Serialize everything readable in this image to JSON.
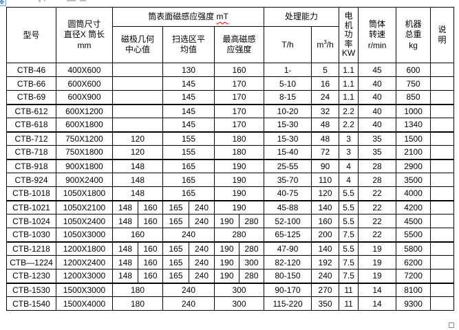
{
  "window": {
    "background": "#ffffff",
    "border_color": "#000000",
    "squiggle_color": "#ff0000"
  },
  "handles": {
    "move_handle_icon": "✥",
    "move_handle_name": "table-move-handle",
    "resize_handle_name": "table-resize-handle"
  },
  "table": {
    "header": {
      "model": "型号",
      "size_lines": [
        "圆筒尺寸",
        "直径X 筒长",
        "mm"
      ],
      "surface_group_text": "筒表面磁感应强度 ",
      "surface_group_unit": "mT",
      "pole_lines": [
        "磁极几何",
        "中心值"
      ],
      "sweep_lines": [
        "扫选区平",
        "均值"
      ],
      "max_lines": [
        "最高磁感",
        "应强度"
      ],
      "capacity_group": "处理能力",
      "th": "T/h",
      "m3h_prefix": "m",
      "m3h_sup": "3",
      "m3h_suffix": "/h",
      "motor_chars": [
        "电",
        "机",
        "功",
        "率",
        "KW"
      ],
      "rpm_lines": [
        "筒体",
        "转速",
        "r/min"
      ],
      "weight_lines": [
        "机器",
        "总重",
        "kg"
      ],
      "note_lines": [
        "说",
        "明"
      ]
    },
    "rows": [
      {
        "model": "CTB-46",
        "size": "400X600",
        "pole": [
          ""
        ],
        "sweep": [
          "130"
        ],
        "max": [
          "160"
        ],
        "th": "1-",
        "m3h": "5",
        "kw": "1.1",
        "rpm": "45",
        "kg": "600",
        "note": "",
        "thick_top": false
      },
      {
        "model": "CTB-66",
        "size": "600X600",
        "pole": [
          ""
        ],
        "sweep": [
          "145"
        ],
        "max": [
          "170"
        ],
        "th": "5-10",
        "m3h": "16",
        "kw": "1.1",
        "rpm": "40",
        "kg": "750",
        "note": "",
        "thick_top": false
      },
      {
        "model": "CTB-69",
        "size": "600X900",
        "pole": [
          ""
        ],
        "sweep": [
          "145"
        ],
        "max": [
          "170"
        ],
        "th": "8-15",
        "m3h": "24",
        "kw": "1.1",
        "rpm": "40",
        "kg": "850",
        "note": "",
        "thick_top": false
      },
      {
        "model": "CTB-612",
        "size": "600X1200",
        "pole": [
          ""
        ],
        "sweep": [
          "145"
        ],
        "max": [
          "170"
        ],
        "th": "10-20",
        "m3h": "32",
        "kw": "2.2",
        "rpm": "40",
        "kg": "1000",
        "note": "",
        "thick_top": true
      },
      {
        "model": "CTB-618",
        "size": "600X1800",
        "pole": [
          ""
        ],
        "sweep": [
          "145"
        ],
        "max": [
          "170"
        ],
        "th": "15-30",
        "m3h": "48",
        "kw": "2.2",
        "rpm": "40",
        "kg": "1340",
        "note": "",
        "thick_top": false
      },
      {
        "model": "CTB-712",
        "size": "750X1200",
        "pole": [
          "120"
        ],
        "sweep": [
          "155"
        ],
        "max": [
          "180"
        ],
        "th": "15-30",
        "m3h": "48",
        "kw": "3",
        "rpm": "35",
        "kg": "1500",
        "note": "",
        "thick_top": true
      },
      {
        "model": "CTB-718",
        "size": "750X1800",
        "pole": [
          "120"
        ],
        "sweep": [
          "155"
        ],
        "max": [
          "180"
        ],
        "th": "15-40",
        "m3h": "72",
        "kw": "3",
        "rpm": "35",
        "kg": "2100",
        "note": "",
        "thick_top": false
      },
      {
        "model": "CTB-918",
        "size": "900X1800",
        "pole": [
          "148"
        ],
        "sweep": [
          "165"
        ],
        "max": [
          "190"
        ],
        "th": "25-55",
        "m3h": "90",
        "kw": "4",
        "rpm": "28",
        "kg": "2900",
        "note": "",
        "thick_top": true
      },
      {
        "model": "CTB-924",
        "size": "900X2400",
        "pole": [
          "148"
        ],
        "sweep": [
          "165"
        ],
        "max": [
          "190"
        ],
        "th": "35-70",
        "m3h": "110",
        "kw": "4",
        "rpm": "28",
        "kg": "3500",
        "note": "",
        "thick_top": false
      },
      {
        "model": "CTB-1018",
        "size": "1050X1800",
        "pole": [
          "148"
        ],
        "sweep": [
          "165"
        ],
        "max": [
          "190"
        ],
        "th": "40-75",
        "m3h": "120",
        "kw": "5.5",
        "rpm": "22",
        "kg": "4000",
        "note": "",
        "thick_top": false
      },
      {
        "model": "CTB-1021",
        "size": "1050X2100",
        "pole": [
          "148",
          "160"
        ],
        "sweep": [
          "165",
          "240"
        ],
        "max": [
          "190"
        ],
        "th": "45-88",
        "m3h": "140",
        "kw": "5.5",
        "rpm": "22",
        "kg": "4200",
        "note": "",
        "thick_top": true
      },
      {
        "model": "CTB-1024",
        "size": "1050X2400",
        "pole": [
          "148",
          "160"
        ],
        "sweep": [
          "165",
          "240"
        ],
        "max": [
          "190",
          "280"
        ],
        "th": "52-100",
        "m3h": "160",
        "kw": "5.5",
        "rpm": "22",
        "kg": "4500",
        "note": "",
        "thick_top": false
      },
      {
        "model": "CTB-1030",
        "size": "1050X3000",
        "pole": [
          "160"
        ],
        "sweep": [
          "240"
        ],
        "max": [
          "280"
        ],
        "th": "65-125",
        "m3h": "200",
        "kw": "7.5",
        "rpm": "22",
        "kg": "5500",
        "note": "",
        "thick_top": false
      },
      {
        "model": "CTB-1218",
        "size": "1200X1800",
        "pole": [
          "148",
          "160"
        ],
        "sweep": [
          "165",
          "240"
        ],
        "max": [
          "190",
          "280"
        ],
        "th": "47-90",
        "m3h": "140",
        "kw": "5.5",
        "rpm": "19",
        "kg": "5800",
        "note": "",
        "thick_top": true
      },
      {
        "model": "CTB—1224",
        "size": "1200X2400",
        "pole": [
          "148",
          "160"
        ],
        "sweep": [
          "165",
          "240"
        ],
        "max": [
          "190",
          "300"
        ],
        "th": "82-120",
        "m3h": "192",
        "kw": "7.5",
        "rpm": "19",
        "kg": "6200",
        "note": "",
        "thick_top": false
      },
      {
        "model": "CTB-1230",
        "size": "1200X3000",
        "pole": [
          "148",
          "160"
        ],
        "sweep": [
          "165",
          "240"
        ],
        "max": [
          "190",
          "280"
        ],
        "th": "80-150",
        "m3h": "240",
        "kw": "7.5",
        "rpm": "19",
        "kg": "7200",
        "note": "",
        "thick_top": false
      },
      {
        "model": "CTB-1530",
        "size": "1500X3000",
        "pole": [
          "180"
        ],
        "sweep": [
          "240"
        ],
        "max": [
          "300"
        ],
        "th": "90-170",
        "m3h": "270",
        "kw": "11",
        "rpm": "14",
        "kg": "8100",
        "note": "",
        "thick_top": true
      },
      {
        "model": "CTB-1540",
        "size": "1500X4000",
        "pole": [
          "180"
        ],
        "sweep": [
          "240"
        ],
        "max": [
          "300"
        ],
        "th": "115-220",
        "m3h": "350",
        "kw": "11",
        "rpm": "14",
        "kg": "9300",
        "note": "",
        "thick_top": false
      }
    ]
  }
}
